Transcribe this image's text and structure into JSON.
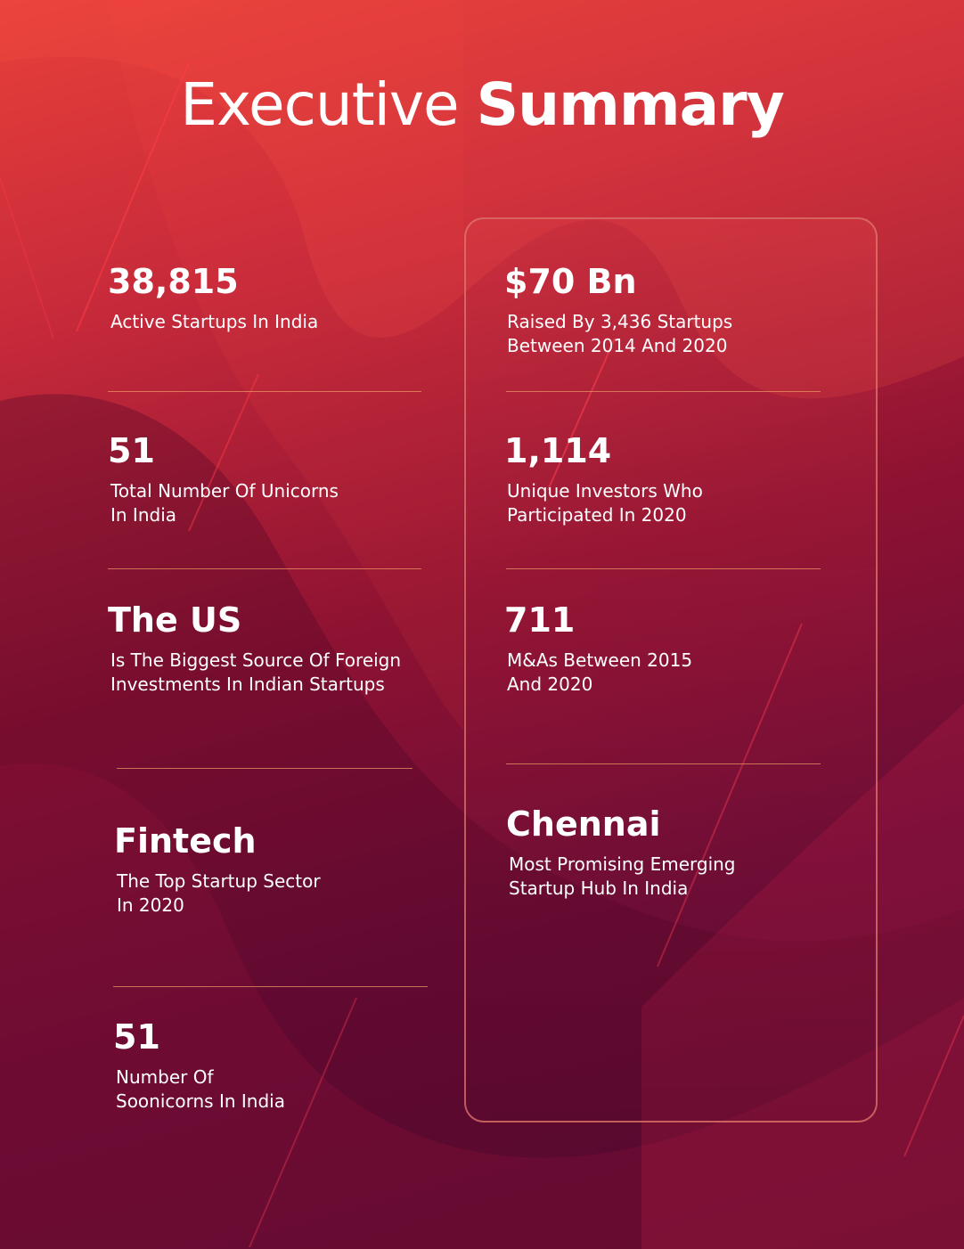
{
  "header": {
    "title_light": "Executive",
    "title_bold": "Summary"
  },
  "left_stats": [
    {
      "value": "38,815",
      "description": "Active Startups In India"
    },
    {
      "value": "51",
      "description": "Total Number Of Unicorns In India"
    },
    {
      "value": "The US",
      "description": "Is The Biggest Source Of Foreign Investments In Indian Startups"
    },
    {
      "value": "Fintech",
      "description": "The Top Startup Sector In 2020"
    },
    {
      "value": "51",
      "description": "Number Of Soonicorns In India"
    }
  ],
  "right_stats": [
    {
      "value": "$70 Bn",
      "description": "Raised By 3,436 Startups Between 2014 And 2020"
    },
    {
      "value": "1,114",
      "description": "Unique Investors Who Participated In 2020"
    },
    {
      "value": "711",
      "description": "M&As Between 2015 And 2020"
    },
    {
      "value": "Chennai",
      "description": "Most Promising Emerging Startup Hub In India"
    }
  ],
  "colors": {
    "accent_line": "#e7966e",
    "panel_border": "#e2786e"
  }
}
